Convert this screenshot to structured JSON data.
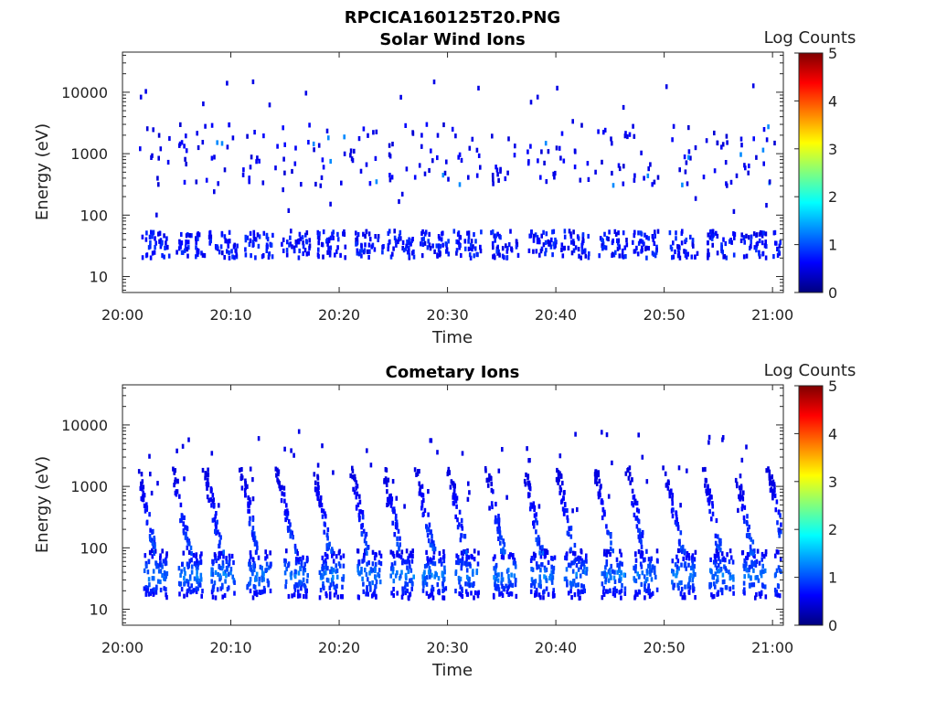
{
  "figure_title": "RPCICA160125T20.PNG",
  "chart_data": [
    {
      "type": "heatmap",
      "title": "Solar Wind Ions",
      "xlabel": "Time",
      "ylabel": "Energy (eV)",
      "x_ticks": [
        "20:00",
        "20:10",
        "20:20",
        "20:30",
        "20:40",
        "20:50",
        "21:00"
      ],
      "x_range_minutes": [
        0,
        61
      ],
      "y_scale": "log",
      "y_ticks": [
        "10",
        "100",
        "1000",
        "10000"
      ],
      "y_range": [
        5.5,
        45000
      ],
      "colorbar": {
        "label": "Log Counts",
        "ticks": [
          "0",
          "1",
          "2",
          "3",
          "4",
          "5"
        ],
        "range": [
          0,
          5
        ],
        "colormap": "jet"
      },
      "features": {
        "low_energy_band_eV": [
          20,
          55
        ],
        "low_energy_peak_log_counts": 1.0,
        "sweep_times_minutes": [
          2.3,
          5.5,
          8.5,
          11.8,
          15.2,
          18.5,
          22,
          25,
          28,
          31,
          34.5,
          38,
          41,
          44.5,
          47.5,
          51,
          54.5,
          57.5,
          60.5
        ],
        "scattered_high_energy_eV": [
          300,
          3000
        ],
        "max_log_counts_observed": 1.8
      }
    },
    {
      "type": "heatmap",
      "title": "Cometary Ions",
      "xlabel": "Time",
      "ylabel": "Energy (eV)",
      "x_ticks": [
        "20:00",
        "20:10",
        "20:20",
        "20:30",
        "20:40",
        "20:50",
        "21:00"
      ],
      "x_range_minutes": [
        0,
        61
      ],
      "y_scale": "log",
      "y_ticks": [
        "10",
        "100",
        "1000",
        "10000"
      ],
      "y_range": [
        5.5,
        45000
      ],
      "colorbar": {
        "label": "Log Counts",
        "ticks": [
          "0",
          "1",
          "2",
          "3",
          "4",
          "5"
        ],
        "range": [
          0,
          5
        ],
        "colormap": "jet"
      },
      "features": {
        "core_band_eV": [
          15,
          90
        ],
        "core_peak_log_counts": 2.0,
        "sweep_times_minutes": [
          2.3,
          5.5,
          8.5,
          11.8,
          15.2,
          18.5,
          22,
          25,
          28,
          31,
          34.5,
          38,
          41,
          44.5,
          47.5,
          51,
          54.5,
          57.5,
          60.5
        ],
        "dispersed_arc_up_to_eV": 2000,
        "max_log_counts_observed": 2.2
      }
    }
  ]
}
